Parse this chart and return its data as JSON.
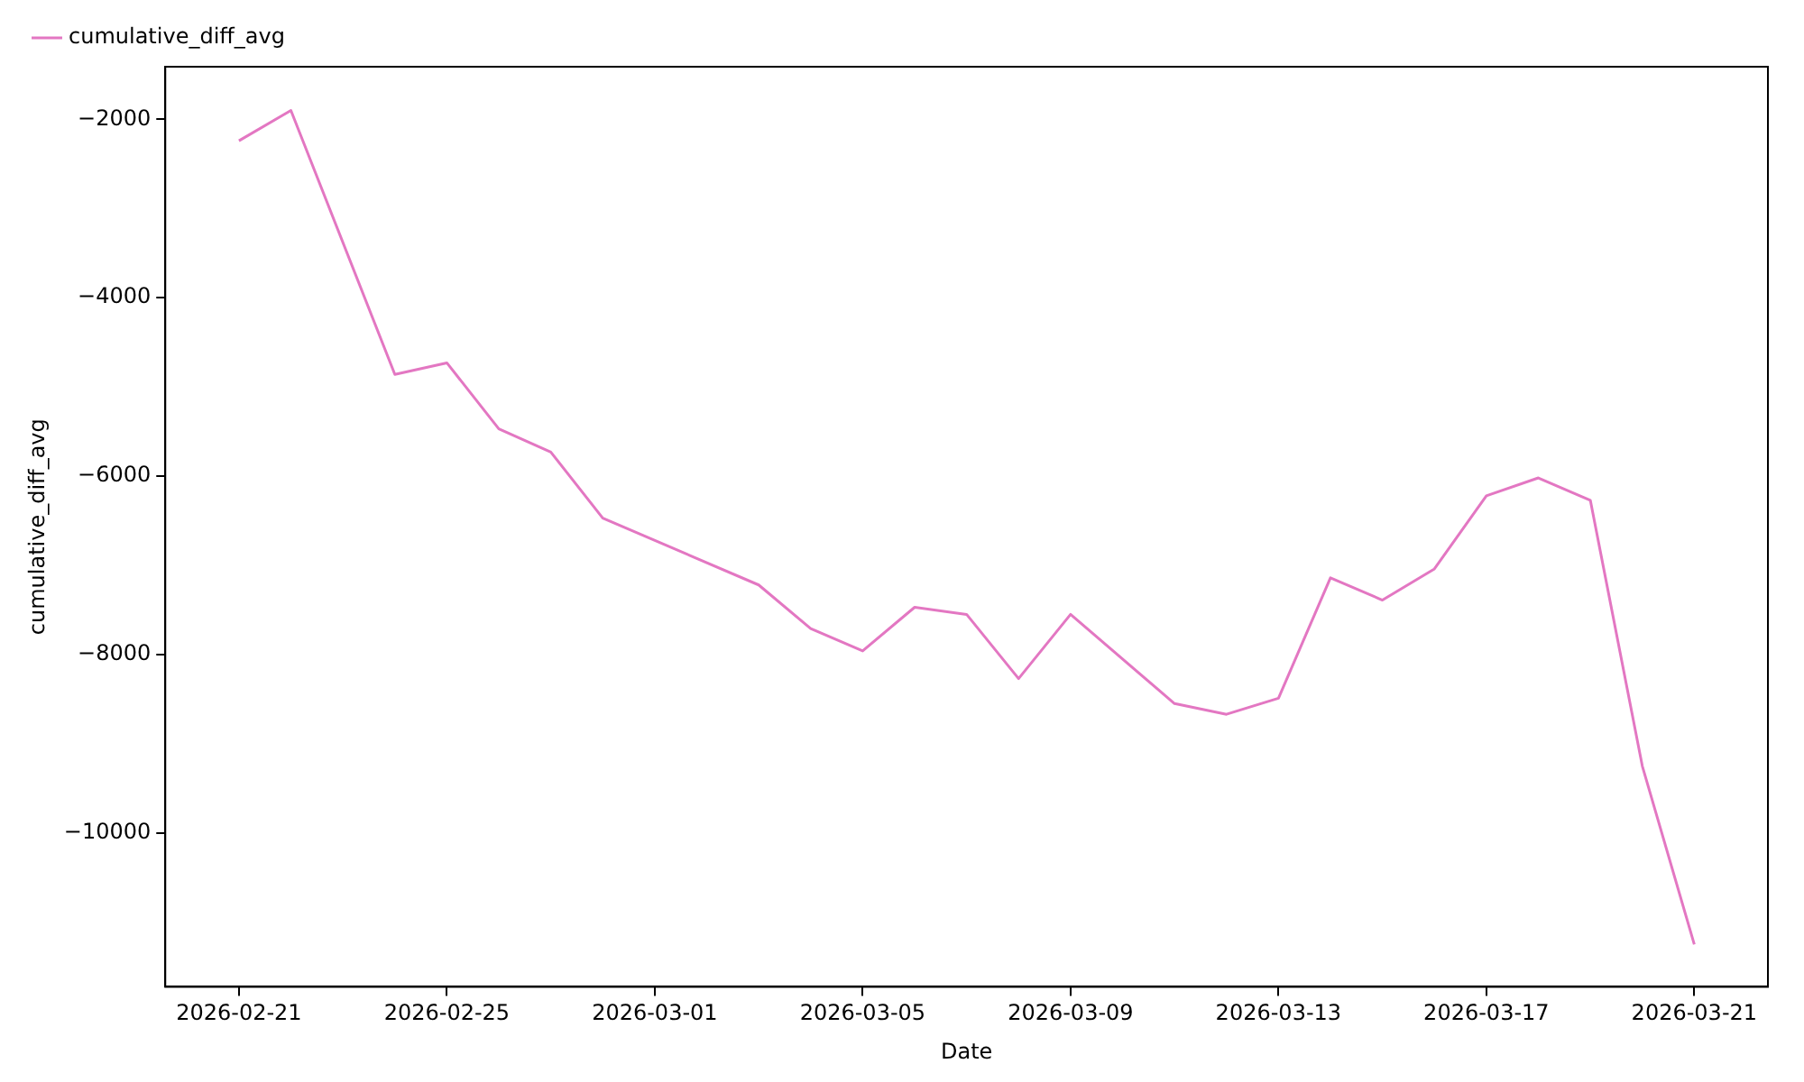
{
  "chart_data": {
    "type": "line",
    "xlabel": "Date",
    "ylabel": "cumulative_diff_avg",
    "x": [
      "2026-02-21",
      "2026-02-22",
      "2026-02-24",
      "2026-02-25",
      "2026-02-26",
      "2026-02-27",
      "2026-02-28",
      "2026-03-03",
      "2026-03-04",
      "2026-03-05",
      "2026-03-06",
      "2026-03-07",
      "2026-03-08",
      "2026-03-09",
      "2026-03-11",
      "2026-03-12",
      "2026-03-13",
      "2026-03-14",
      "2026-03-15",
      "2026-03-16",
      "2026-03-17",
      "2026-03-18",
      "2026-03-19",
      "2026-03-20",
      "2026-03-21"
    ],
    "series": [
      {
        "name": "cumulative_diff_avg",
        "color": "#e377c2",
        "values": [
          -2240,
          -1900,
          -4860,
          -4730,
          -5470,
          -5730,
          -6470,
          -7220,
          -7710,
          -7960,
          -7470,
          -7550,
          -8270,
          -7550,
          -8550,
          -8670,
          -8490,
          -7140,
          -7390,
          -7040,
          -6220,
          -6020,
          -6270,
          -9250,
          -11250
        ]
      }
    ],
    "xlim": [
      "2026-02-19T14:00",
      "2026-03-22T10:00"
    ],
    "ylim": [
      -11725,
      -1410
    ],
    "xticks": [
      "2026-02-21",
      "2026-02-25",
      "2026-03-01",
      "2026-03-05",
      "2026-03-09",
      "2026-03-13",
      "2026-03-17",
      "2026-03-21"
    ],
    "yticks": [
      -10000,
      -8000,
      -6000,
      -4000,
      -2000
    ],
    "grid": false,
    "legend": "top left",
    "marker": "none",
    "line_style": "solid"
  }
}
